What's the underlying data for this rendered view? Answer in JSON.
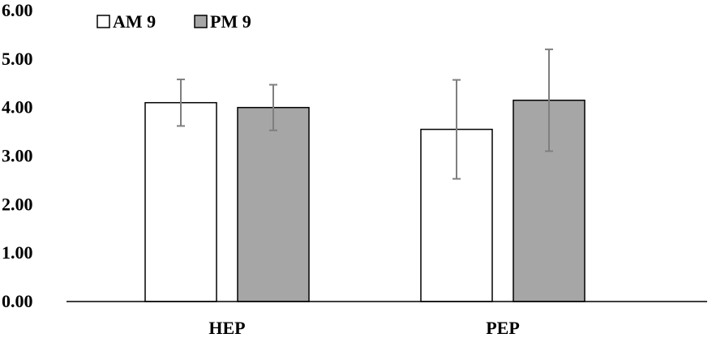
{
  "chart_data": {
    "type": "bar",
    "title": "",
    "xlabel": "",
    "ylabel": "",
    "categories": [
      "HEP",
      "PEP"
    ],
    "series": [
      {
        "name": "AM 9",
        "color": "#ffffff",
        "values": [
          4.1,
          3.55
        ],
        "error": [
          0.48,
          1.02
        ]
      },
      {
        "name": "PM 9",
        "color": "#a6a6a6",
        "values": [
          4.0,
          4.15
        ],
        "error": [
          0.47,
          1.05
        ]
      }
    ],
    "ylim": [
      0,
      6
    ],
    "yticks": [
      "0.00",
      "1.00",
      "2.00",
      "3.00",
      "4.00",
      "5.00",
      "6.00"
    ],
    "ytick_values": [
      0,
      1,
      2,
      3,
      4,
      5,
      6
    ],
    "grid": false,
    "legend": "top-left",
    "bar_outline_color": "#000000",
    "error_bar_color": "#7f7f7f"
  }
}
